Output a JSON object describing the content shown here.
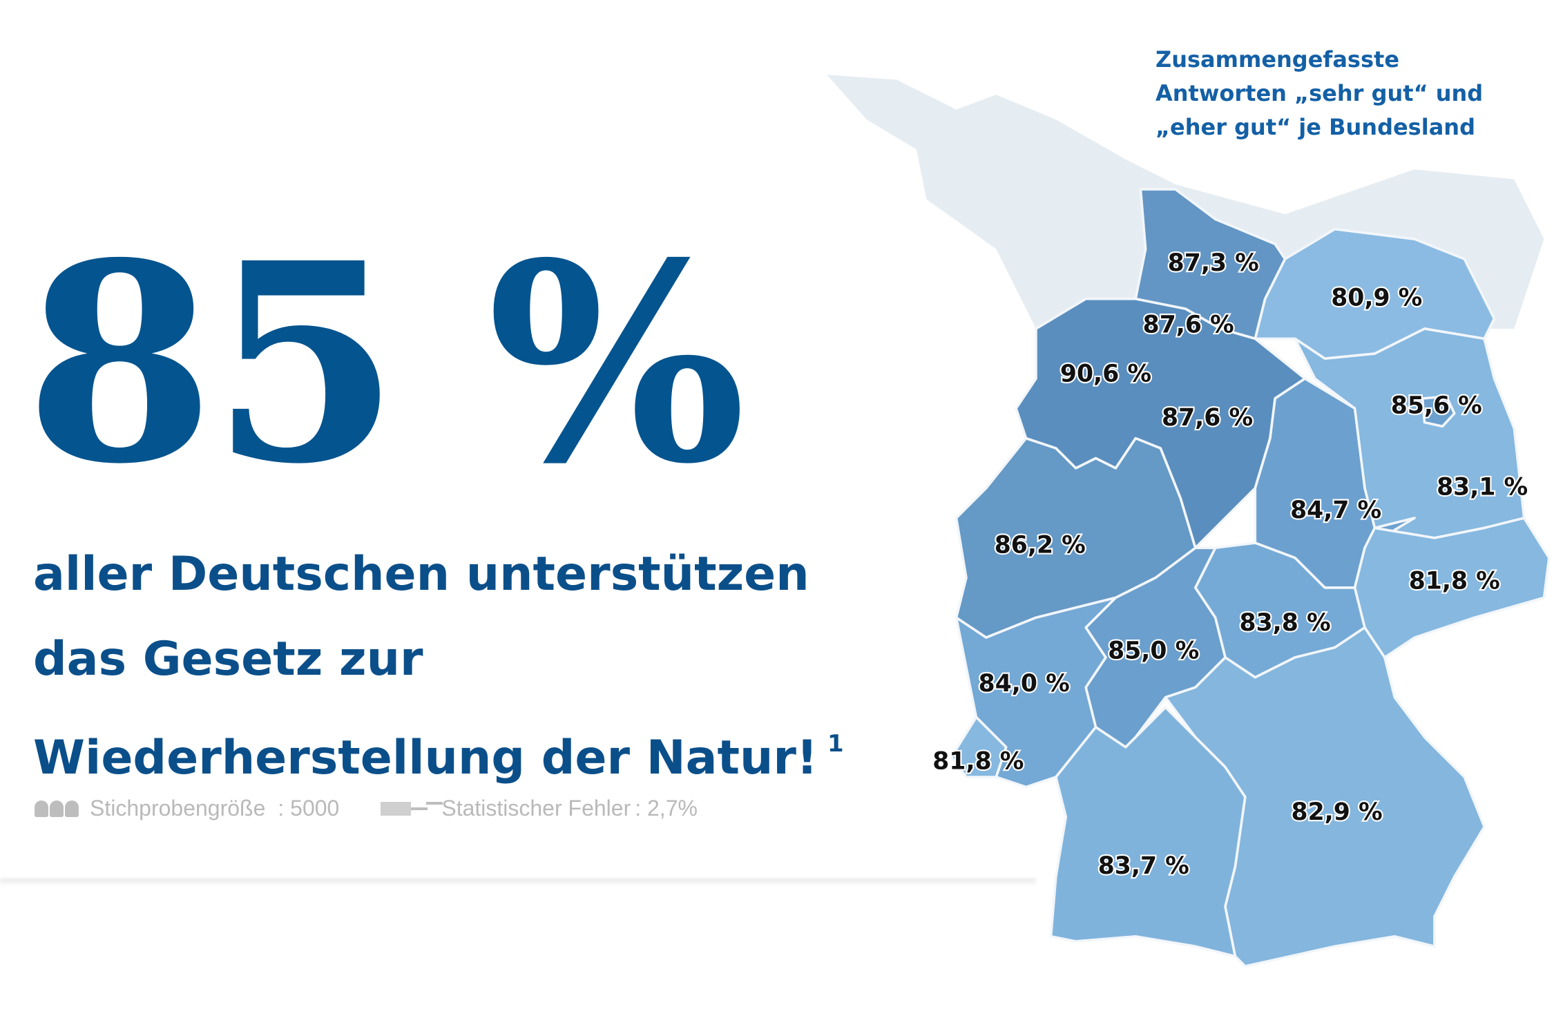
{
  "headline": {
    "big_number": "85 %",
    "lines": [
      "aller Deutschen unterstützen",
      "das Gesetz zur",
      "Wiederherstellung der Natur!"
    ],
    "footnote": "1"
  },
  "stats": {
    "sample_label": "Stichprobengröße",
    "sample_value": ": 5000",
    "error_label": "Statistischer Fehler",
    "error_value": ": 2,7%"
  },
  "map": {
    "title_lines": [
      "Zusammengefasste",
      "Antworten „sehr gut“ und",
      "„eher gut“ je Bundesland"
    ],
    "colors": {
      "dark": "#5a8ebe",
      "medium": "#6ca0cf",
      "light": "#86b8e0",
      "neighbor": "#e6edf2"
    },
    "regions": [
      {
        "id": "schleswig-holstein",
        "value": "87,3 %"
      },
      {
        "id": "mecklenburg-vorpommern",
        "value": "80,9 %"
      },
      {
        "id": "hamburg",
        "value": "87,6 %"
      },
      {
        "id": "bremen",
        "value": "90,6 %"
      },
      {
        "id": "niedersachsen",
        "value": "87,6 %"
      },
      {
        "id": "brandenburg",
        "value": "85,6 %"
      },
      {
        "id": "berlin",
        "value": "83,1 %"
      },
      {
        "id": "sachsen-anhalt",
        "value": "84,7 %"
      },
      {
        "id": "nordrhein-westfalen",
        "value": "86,2 %"
      },
      {
        "id": "sachsen",
        "value": "81,8 %"
      },
      {
        "id": "thueringen",
        "value": "83,8 %"
      },
      {
        "id": "hessen",
        "value": "85,0 %"
      },
      {
        "id": "rheinland-pfalz",
        "value": "84,0 %"
      },
      {
        "id": "saarland",
        "value": "81,8 %"
      },
      {
        "id": "bayern",
        "value": "82,9 %"
      },
      {
        "id": "baden-wuerttemberg",
        "value": "83,7 %"
      }
    ]
  }
}
